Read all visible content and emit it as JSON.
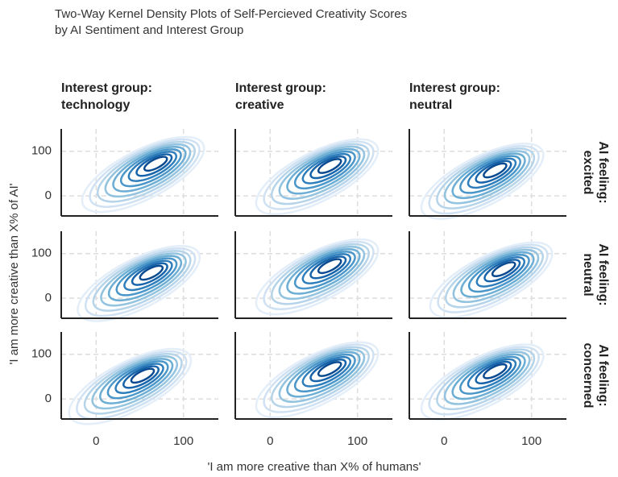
{
  "chart_data": {
    "type": "kde",
    "title": [
      "Two-Way Kernel Density Plots of Self-Percieved Creativity Scores",
      "by AI Sentiment and Interest Group"
    ],
    "columns": [
      [
        "Interest group:",
        "technology"
      ],
      [
        "Interest group:",
        "creative"
      ],
      [
        "Interest group:",
        "neutral"
      ]
    ],
    "rows": [
      [
        "AI feeling:",
        "excited"
      ],
      [
        "AI feeling:",
        "neutral"
      ],
      [
        "AI feeling:",
        "concerned"
      ]
    ],
    "x_label": "'I am more creative than X% of humans'",
    "y_label": "'I am more creative than X% of AI'",
    "xlim": [
      -40,
      140
    ],
    "ylim": [
      -45,
      150
    ],
    "xticks": [
      0,
      100
    ],
    "yticks": [
      0,
      100
    ],
    "grid": true,
    "contour_colors": [
      "#e3eef9",
      "#cfe1f2",
      "#b5d4e9",
      "#93c3df",
      "#6daed5",
      "#4b97c9",
      "#2f7ebc",
      "#1864aa",
      "#0a4a90"
    ],
    "density_peaks": [
      [
        [
          70,
          75
        ],
        [
          70,
          70
        ],
        [
          60,
          60
        ]
      ],
      [
        [
          65,
          60
        ],
        [
          70,
          75
        ],
        [
          70,
          68
        ]
      ],
      [
        [
          55,
          55
        ],
        [
          70,
          70
        ],
        [
          60,
          65
        ]
      ]
    ]
  }
}
